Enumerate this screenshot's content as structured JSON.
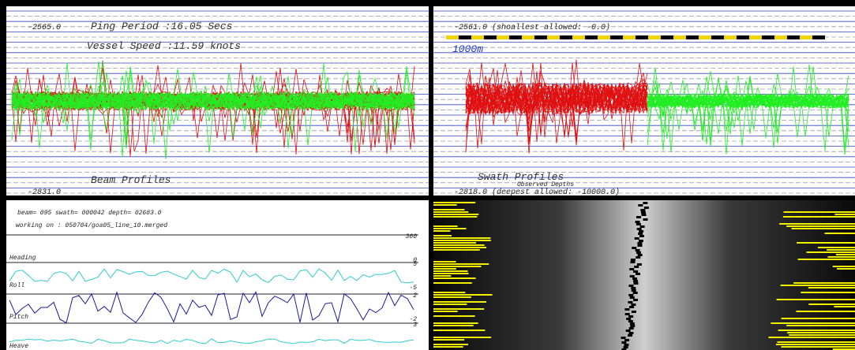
{
  "beam_panel": {
    "top_depth": "-2565.0",
    "ping_period": "Ping Period :16.05 Secs",
    "vessel_speed": "Vessel Speed :11.59 knots",
    "title": "Beam Profiles",
    "bottom_depth": "-2831.0"
  },
  "swath_panel": {
    "top_depth": "-2561.0 (shoallest allowed: -0.0)",
    "scale": "1000m",
    "title": "Swath Profiles",
    "subtitle": "Observed Depths",
    "bottom_depth": "-2818.0 (deepest allowed: -10000.0)"
  },
  "status_panel": {
    "status": "beam= 095 swath= 000042 depth= 02683.0",
    "file": "working on : 050704/goa05_line_10.merged",
    "tracks": [
      {
        "label": "Heading",
        "max": "360",
        "min": "0"
      },
      {
        "label": "Roll",
        "max": "5",
        "min": "-5"
      },
      {
        "label": "Pitch",
        "max": "2",
        "min": "-2"
      },
      {
        "label": "Heave",
        "max": "3",
        "min": ""
      }
    ]
  }
}
